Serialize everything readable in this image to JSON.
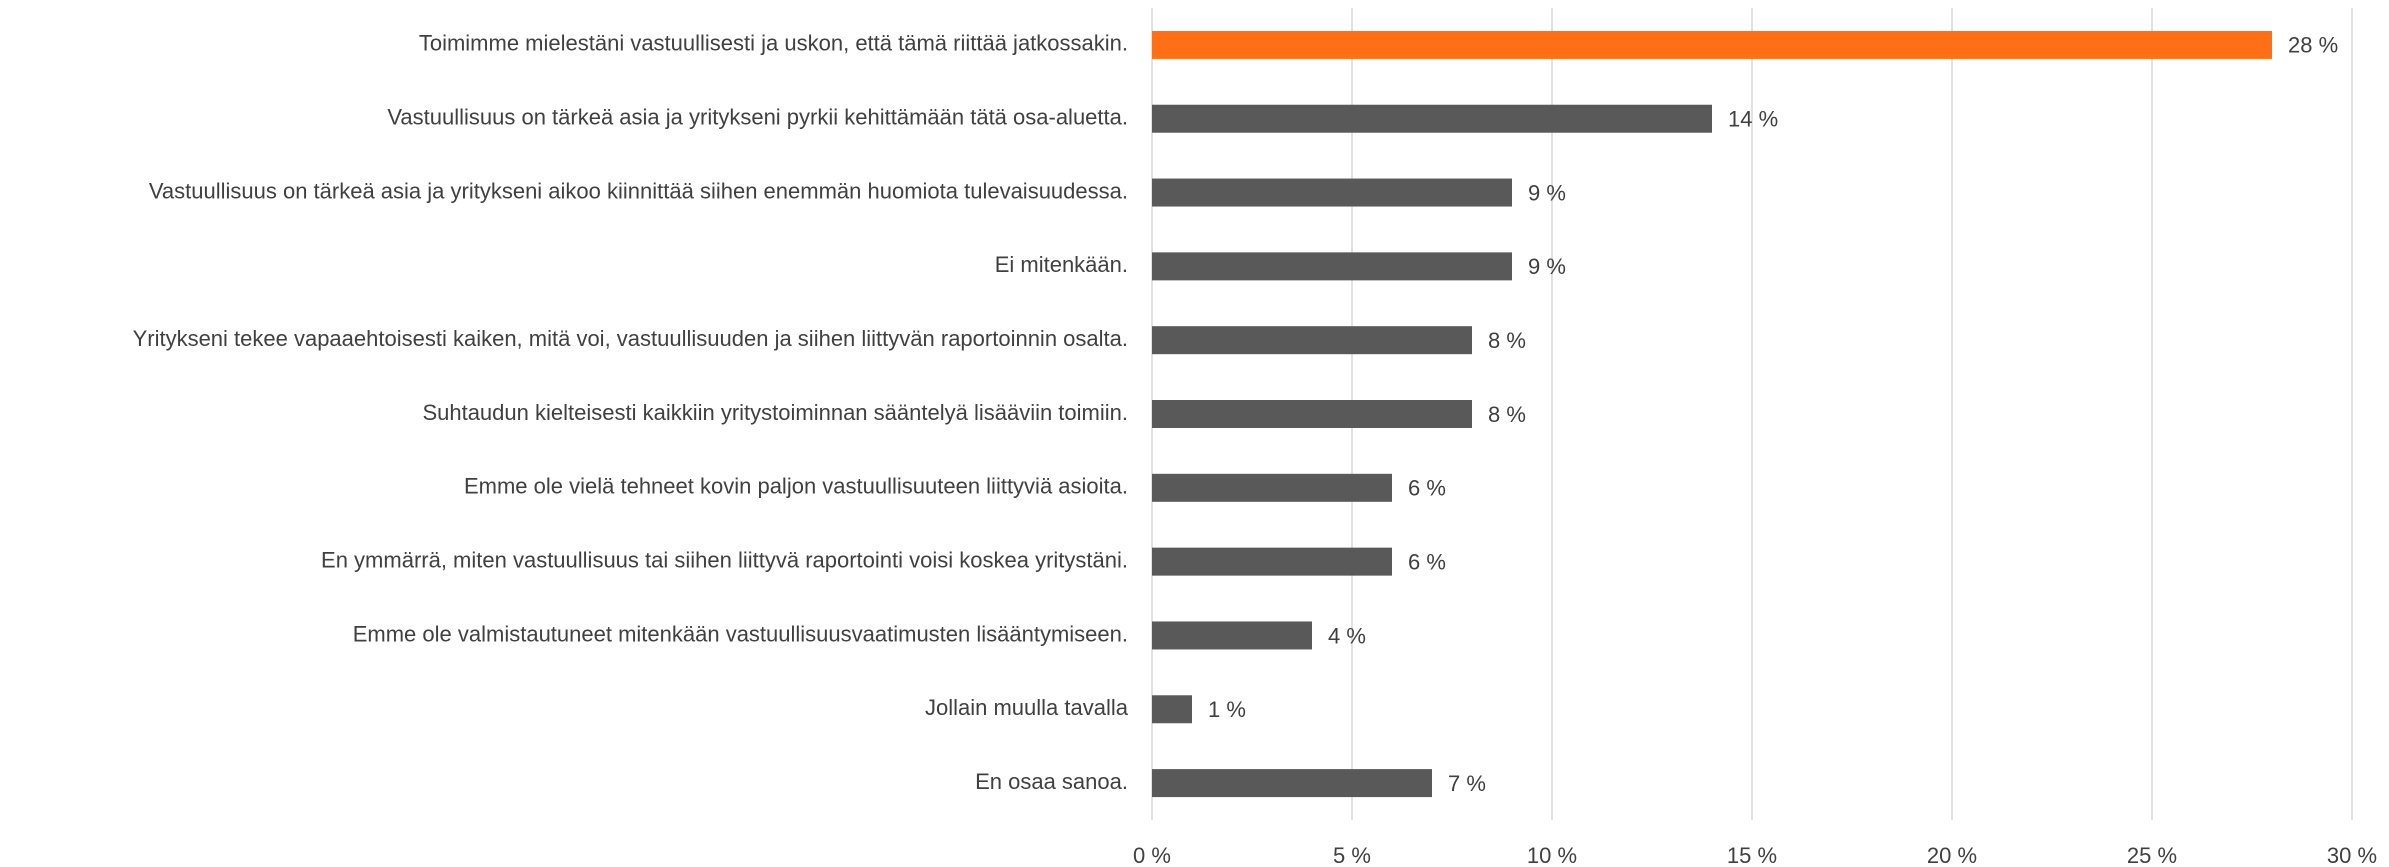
{
  "chart_data": {
    "type": "hbar",
    "categories": [
      "Toimimme mielestäni vastuullisesti ja uskon, että tämä riittää jatkossakin.",
      "Vastuullisuus on tärkeä asia ja yritykseni pyrkii kehittämään tätä osa-aluetta.",
      "Vastuullisuus on tärkeä asia ja yritykseni aikoo kiinnittää siihen enemmän huomiota tulevaisuudessa.",
      "Ei mitenkään.",
      "Yritykseni tekee vapaaehtoisesti kaiken, mitä voi, vastuullisuuden ja siihen liittyvän raportoinnin osalta.",
      "Suhtaudun kielteisesti kaikkiin yritystoiminnan sääntelyä lisääviin toimiin.",
      "Emme ole vielä tehneet kovin paljon vastuullisuuteen liittyviä asioita.",
      "En ymmärrä, miten vastuullisuus tai siihen liittyvä raportointi voisi koskea yritystäni.",
      "Emme ole valmistautuneet mitenkään vastuullisuusvaatimusten lisääntymiseen.",
      "Jollain muulla tavalla",
      "En osaa sanoa."
    ],
    "values": [
      28,
      14,
      9,
      9,
      8,
      8,
      6,
      6,
      4,
      1,
      7
    ],
    "value_labels": [
      "28 %",
      "14 %",
      "9 %",
      "9 %",
      "8 %",
      "8 %",
      "6 %",
      "6 %",
      "4 %",
      "1 %",
      "7 %"
    ],
    "colors": [
      "#ff6f15",
      "#595959",
      "#595959",
      "#595959",
      "#595959",
      "#595959",
      "#595959",
      "#595959",
      "#595959",
      "#595959",
      "#595959"
    ],
    "xlim": [
      0,
      30
    ],
    "xticks": [
      {
        "value": 0,
        "label": "0 %"
      },
      {
        "value": 5,
        "label": "5 %"
      },
      {
        "value": 10,
        "label": "10 %"
      },
      {
        "value": 15,
        "label": "15 %"
      },
      {
        "value": 20,
        "label": "20 %"
      },
      {
        "value": 25,
        "label": "25 %"
      },
      {
        "value": 30,
        "label": "30 %"
      }
    ],
    "grid": true
  }
}
